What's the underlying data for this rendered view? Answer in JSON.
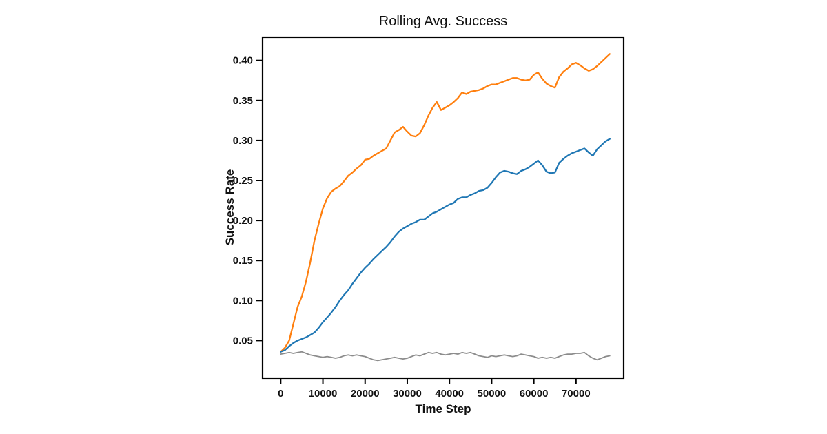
{
  "chart_data": {
    "type": "line",
    "title": "Rolling Avg. Success",
    "xlabel": "Time Step",
    "ylabel": "Success Rate",
    "grid": false,
    "legend": "none",
    "frame_color": "#000000",
    "xlim": [
      -4300,
      81300
    ],
    "ylim": [
      0.003,
      0.429
    ],
    "x_ticks": [
      0,
      10000,
      20000,
      30000,
      40000,
      50000,
      60000,
      70000
    ],
    "x_tick_labels": [
      "0",
      "10000",
      "20000",
      "30000",
      "40000",
      "50000",
      "60000",
      "70000"
    ],
    "y_ticks": [
      0.05,
      0.1,
      0.15,
      0.2,
      0.25,
      0.3,
      0.35,
      0.4
    ],
    "y_tick_labels": [
      "0.05",
      "0.10",
      "0.15",
      "0.20",
      "0.25",
      "0.30",
      "0.35",
      "0.40"
    ],
    "x_start": 0,
    "x_step": 1000,
    "series": [
      {
        "name": "orange-run",
        "color": "#ff7f0e",
        "stroke_width": 2.3,
        "values": [
          0.036,
          0.041,
          0.05,
          0.071,
          0.092,
          0.105,
          0.124,
          0.148,
          0.175,
          0.196,
          0.215,
          0.228,
          0.236,
          0.24,
          0.243,
          0.249,
          0.256,
          0.26,
          0.265,
          0.269,
          0.276,
          0.277,
          0.281,
          0.284,
          0.287,
          0.29,
          0.3,
          0.31,
          0.313,
          0.317,
          0.311,
          0.306,
          0.305,
          0.309,
          0.319,
          0.331,
          0.341,
          0.348,
          0.338,
          0.341,
          0.344,
          0.348,
          0.353,
          0.36,
          0.358,
          0.361,
          0.362,
          0.363,
          0.365,
          0.368,
          0.37,
          0.37,
          0.372,
          0.374,
          0.376,
          0.378,
          0.378,
          0.376,
          0.375,
          0.376,
          0.382,
          0.385,
          0.377,
          0.371,
          0.368,
          0.366,
          0.379,
          0.386,
          0.39,
          0.395,
          0.397,
          0.394,
          0.39,
          0.387,
          0.389,
          0.393,
          0.398,
          0.403,
          0.408
        ]
      },
      {
        "name": "blue-run",
        "color": "#1f77b4",
        "stroke_width": 2.3,
        "values": [
          0.036,
          0.038,
          0.043,
          0.047,
          0.05,
          0.052,
          0.054,
          0.057,
          0.06,
          0.066,
          0.073,
          0.079,
          0.085,
          0.092,
          0.1,
          0.107,
          0.113,
          0.121,
          0.128,
          0.135,
          0.141,
          0.146,
          0.152,
          0.157,
          0.162,
          0.167,
          0.173,
          0.18,
          0.186,
          0.19,
          0.193,
          0.196,
          0.198,
          0.201,
          0.201,
          0.205,
          0.209,
          0.211,
          0.214,
          0.217,
          0.22,
          0.222,
          0.227,
          0.229,
          0.229,
          0.232,
          0.234,
          0.237,
          0.238,
          0.241,
          0.247,
          0.254,
          0.26,
          0.262,
          0.261,
          0.259,
          0.258,
          0.262,
          0.264,
          0.267,
          0.271,
          0.275,
          0.269,
          0.261,
          0.259,
          0.26,
          0.272,
          0.277,
          0.281,
          0.284,
          0.286,
          0.288,
          0.29,
          0.285,
          0.281,
          0.289,
          0.294,
          0.299,
          0.302
        ]
      },
      {
        "name": "gray-baseline",
        "color": "#8c8c8c",
        "stroke_width": 1.8,
        "values": [
          0.033,
          0.034,
          0.035,
          0.034,
          0.035,
          0.036,
          0.034,
          0.032,
          0.031,
          0.03,
          0.029,
          0.03,
          0.029,
          0.028,
          0.029,
          0.031,
          0.032,
          0.031,
          0.032,
          0.031,
          0.03,
          0.028,
          0.026,
          0.025,
          0.026,
          0.027,
          0.028,
          0.029,
          0.028,
          0.027,
          0.028,
          0.03,
          0.032,
          0.031,
          0.033,
          0.035,
          0.034,
          0.035,
          0.033,
          0.032,
          0.033,
          0.034,
          0.033,
          0.035,
          0.034,
          0.035,
          0.033,
          0.031,
          0.03,
          0.029,
          0.031,
          0.03,
          0.031,
          0.032,
          0.031,
          0.03,
          0.031,
          0.033,
          0.032,
          0.031,
          0.03,
          0.028,
          0.029,
          0.028,
          0.029,
          0.028,
          0.03,
          0.032,
          0.033,
          0.033,
          0.034,
          0.034,
          0.035,
          0.031,
          0.028,
          0.026,
          0.028,
          0.03,
          0.031
        ]
      }
    ]
  }
}
